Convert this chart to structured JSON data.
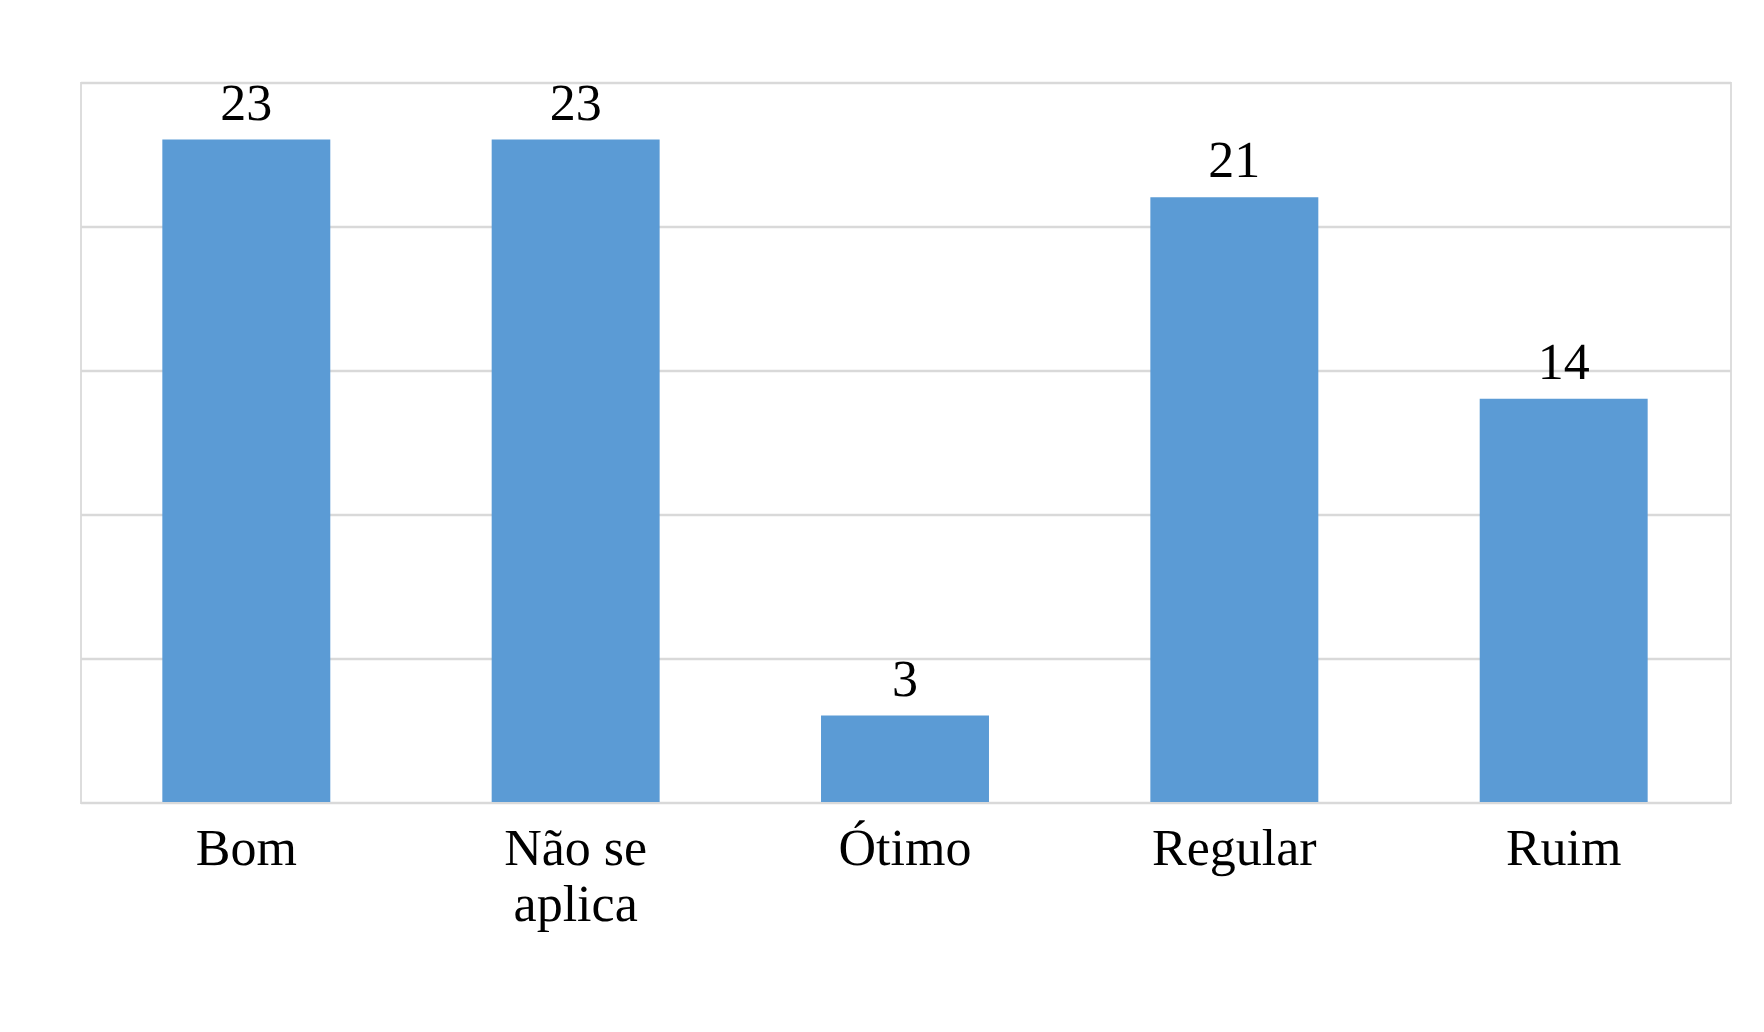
{
  "chart_data": {
    "type": "bar",
    "categories": [
      "Bom",
      "Não se aplica",
      "Ótimo",
      "Regular",
      "Ruim"
    ],
    "values": [
      23,
      23,
      3,
      21,
      14
    ],
    "color": "#5b9bd5",
    "data_labels": true,
    "ylim": [
      0,
      25
    ],
    "yticks": [
      0,
      5,
      10,
      15,
      20,
      25
    ],
    "grid": "y",
    "tick_labels": "x"
  }
}
